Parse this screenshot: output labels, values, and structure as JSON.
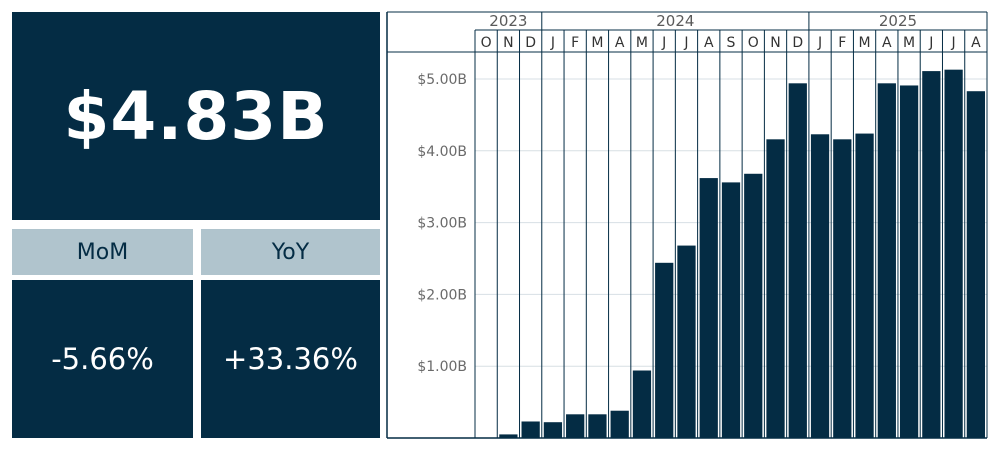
{
  "kpi": {
    "total": "$4.83B",
    "mom_label": "MoM",
    "yoy_label": "YoY",
    "mom_value": "-5.66%",
    "yoy_value": "+33.36%"
  },
  "colors": {
    "bar": "#042c44",
    "header": "#b0c4cd",
    "grid": "#d7dfe4"
  },
  "chart_data": {
    "type": "bar",
    "years": [
      {
        "label": "2023",
        "months": 3
      },
      {
        "label": "2024",
        "months": 12
      },
      {
        "label": "2025",
        "months": 8
      }
    ],
    "categories": [
      "O",
      "N",
      "D",
      "J",
      "F",
      "M",
      "A",
      "M",
      "J",
      "J",
      "A",
      "S",
      "O",
      "N",
      "D",
      "J",
      "F",
      "M",
      "A",
      "M",
      "J",
      "J",
      "A"
    ],
    "values": [
      0,
      0.05,
      0.23,
      0.22,
      0.33,
      0.33,
      0.38,
      0.94,
      2.44,
      2.68,
      3.62,
      3.56,
      3.68,
      4.16,
      4.94,
      4.23,
      4.16,
      4.24,
      4.94,
      4.91,
      5.11,
      5.13,
      4.83
    ],
    "unit": "billions USD",
    "yticks": [
      "$1.00B",
      "$2.00B",
      "$3.00B",
      "$4.00B",
      "$5.00B"
    ],
    "ytick_values": [
      1,
      2,
      3,
      4,
      5
    ],
    "ylim": [
      0,
      5.5
    ],
    "grid": true
  }
}
